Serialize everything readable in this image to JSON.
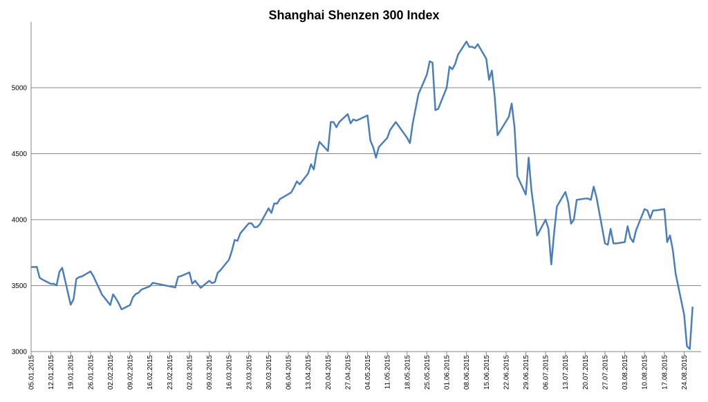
{
  "chart_data": {
    "type": "line",
    "title": "Shanghai Shenzen 300 Index",
    "x": [
      "05.01.2015",
      "06.01.2015",
      "07.01.2015",
      "08.01.2015",
      "09.01.2015",
      "12.01.2015",
      "13.01.2015",
      "14.01.2015",
      "15.01.2015",
      "16.01.2015",
      "19.01.2015",
      "20.01.2015",
      "21.01.2015",
      "22.01.2015",
      "23.01.2015",
      "26.01.2015",
      "27.01.2015",
      "28.01.2015",
      "29.01.2015",
      "30.01.2015",
      "02.02.2015",
      "03.02.2015",
      "04.02.2015",
      "05.02.2015",
      "06.02.2015",
      "09.02.2015",
      "10.02.2015",
      "11.02.2015",
      "12.02.2015",
      "13.02.2015",
      "16.02.2015",
      "17.02.2015",
      "25.02.2015",
      "26.02.2015",
      "27.02.2015",
      "02.03.2015",
      "03.03.2015",
      "04.03.2015",
      "05.03.2015",
      "06.03.2015",
      "09.03.2015",
      "10.03.2015",
      "11.03.2015",
      "12.03.2015",
      "13.03.2015",
      "16.03.2015",
      "17.03.2015",
      "18.03.2015",
      "19.03.2015",
      "20.03.2015",
      "23.03.2015",
      "24.03.2015",
      "25.03.2015",
      "26.03.2015",
      "27.03.2015",
      "30.03.2015",
      "31.03.2015",
      "01.04.2015",
      "02.04.2015",
      "03.04.2015",
      "07.04.2015",
      "08.04.2015",
      "09.04.2015",
      "10.04.2015",
      "13.04.2015",
      "14.04.2015",
      "15.04.2015",
      "16.04.2015",
      "17.04.2015",
      "20.04.2015",
      "21.04.2015",
      "22.04.2015",
      "23.04.2015",
      "24.04.2015",
      "27.04.2015",
      "28.04.2015",
      "29.04.2015",
      "30.04.2015",
      "04.05.2015",
      "05.05.2015",
      "06.05.2015",
      "07.05.2015",
      "08.05.2015",
      "11.05.2015",
      "12.05.2015",
      "13.05.2015",
      "14.05.2015",
      "15.05.2015",
      "18.05.2015",
      "19.05.2015",
      "20.05.2015",
      "21.05.2015",
      "22.05.2015",
      "25.05.2015",
      "26.05.2015",
      "27.05.2015",
      "28.05.2015",
      "29.05.2015",
      "01.06.2015",
      "02.06.2015",
      "03.06.2015",
      "04.06.2015",
      "05.06.2015",
      "08.06.2015",
      "09.06.2015",
      "10.06.2015",
      "11.06.2015",
      "12.06.2015",
      "15.06.2015",
      "16.06.2015",
      "17.06.2015",
      "18.06.2015",
      "19.06.2015",
      "23.06.2015",
      "24.06.2015",
      "25.06.2015",
      "26.06.2015",
      "29.06.2015",
      "30.06.2015",
      "01.07.2015",
      "02.07.2015",
      "03.07.2015",
      "06.07.2015",
      "07.07.2015",
      "08.07.2015",
      "09.07.2015",
      "10.07.2015",
      "13.07.2015",
      "14.07.2015",
      "15.07.2015",
      "16.07.2015",
      "17.07.2015",
      "20.07.2015",
      "21.07.2015",
      "22.07.2015",
      "23.07.2015",
      "24.07.2015",
      "27.07.2015",
      "28.07.2015",
      "29.07.2015",
      "30.07.2015",
      "31.07.2015",
      "03.08.2015",
      "04.08.2015",
      "05.08.2015",
      "06.08.2015",
      "07.08.2015",
      "10.08.2015",
      "11.08.2015",
      "12.08.2015",
      "13.08.2015",
      "14.08.2015",
      "17.08.2015",
      "18.08.2015",
      "19.08.2015",
      "20.08.2015",
      "21.08.2015",
      "24.08.2015",
      "25.08.2015",
      "26.08.2015",
      "27.08.2015"
    ],
    "series": [
      {
        "name": "Shanghai Shenzen 300 Index",
        "color": "#4a7ebb",
        "values": [
          3641,
          3641,
          3643,
          3560,
          3546,
          3513,
          3514,
          3502,
          3604,
          3635,
          3355,
          3396,
          3551,
          3565,
          3570,
          3608,
          3573,
          3526,
          3482,
          3434,
          3353,
          3434,
          3402,
          3365,
          3320,
          3353,
          3411,
          3436,
          3446,
          3470,
          3495,
          3521,
          3486,
          3567,
          3572,
          3600,
          3514,
          3537,
          3510,
          3483,
          3537,
          3519,
          3527,
          3597,
          3617,
          3697,
          3762,
          3846,
          3840,
          3896,
          3972,
          3972,
          3942,
          3945,
          3968,
          4086,
          4051,
          4123,
          4121,
          4156,
          4206,
          4245,
          4290,
          4268,
          4350,
          4420,
          4380,
          4510,
          4590,
          4520,
          4740,
          4740,
          4700,
          4740,
          4800,
          4730,
          4760,
          4750,
          4790,
          4600,
          4550,
          4470,
          4550,
          4620,
          4680,
          4710,
          4740,
          4710,
          4620,
          4580,
          4730,
          4840,
          4950,
          5100,
          5200,
          5190,
          4830,
          4840,
          5000,
          5160,
          5140,
          5180,
          5250,
          5350,
          5310,
          5310,
          5300,
          5330,
          5220,
          5060,
          5130,
          4930,
          4640,
          4780,
          4880,
          4700,
          4330,
          4190,
          4470,
          4220,
          4060,
          3880,
          4000,
          3930,
          3660,
          3900,
          4100,
          4210,
          4130,
          3970,
          4000,
          4150,
          4160,
          4160,
          4150,
          4250,
          4170,
          3820,
          3810,
          3930,
          3820,
          3820,
          3830,
          3950,
          3860,
          3830,
          3920,
          4080,
          4070,
          4010,
          4070,
          4070,
          4080,
          3830,
          3880,
          3770,
          3590,
          3280,
          3040,
          3020,
          3340
        ]
      }
    ],
    "xlim": [
      "05.01.2015",
      "30.08.2015"
    ],
    "xticks": [
      "05.01.2015",
      "12.01.2015",
      "19.01.2015",
      "26.01.2015",
      "02.02.2015",
      "09.02.2015",
      "16.02.2015",
      "23.02.2015",
      "02.03.2015",
      "09.03.2015",
      "16.03.2015",
      "23.03.2015",
      "30.03.2015",
      "06.04.2015",
      "13.04.2015",
      "20.04.2015",
      "27.04.2015",
      "04.05.2015",
      "11.05.2015",
      "18.05.2015",
      "25.05.2015",
      "01.06.2015",
      "08.06.2015",
      "15.06.2015",
      "22.06.2015",
      "29.06.2015",
      "06.07.2015",
      "13.07.2015",
      "20.07.2015",
      "27.07.2015",
      "03.08.2015",
      "10.08.2015",
      "17.08.2015",
      "24.08.2015"
    ],
    "ylim": [
      3000,
      5500
    ],
    "yticks": [
      3000,
      3500,
      4000,
      4500,
      5000
    ],
    "grid": true
  }
}
